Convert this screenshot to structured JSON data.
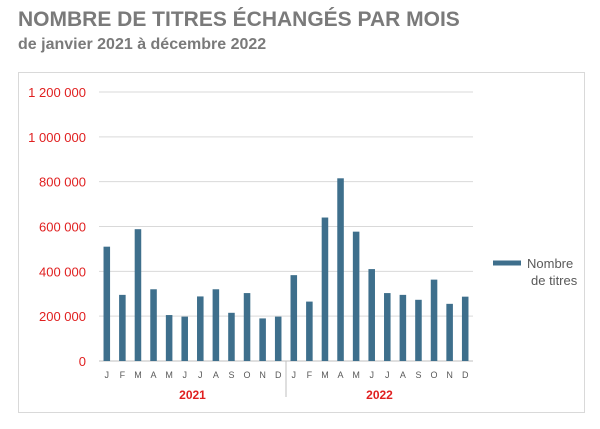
{
  "title": "NOMBRE DE TITRES ÉCHANGÉS PAR MOIS",
  "subtitle": "de janvier 2021 à décembre 2022",
  "chart_data": {
    "type": "bar",
    "title": "",
    "xlabel": "",
    "ylabel": "",
    "ylim": [
      0,
      1200000
    ],
    "yticks": [
      0,
      200000,
      400000,
      600000,
      800000,
      1000000,
      1200000
    ],
    "ytick_labels": [
      "0",
      "200 000",
      "400 000",
      "600 000",
      "800 000",
      "1 000 000",
      "1 200 000"
    ],
    "grid": true,
    "legend_position": "right",
    "categories": [
      "J",
      "F",
      "M",
      "A",
      "M",
      "J",
      "J",
      "A",
      "S",
      "O",
      "N",
      "D",
      "J",
      "F",
      "M",
      "A",
      "M",
      "J",
      "J",
      "A",
      "S",
      "O",
      "N",
      "D"
    ],
    "groups": [
      {
        "label": "2021",
        "count": 12
      },
      {
        "label": "2022",
        "count": 12
      }
    ],
    "series": [
      {
        "name": "Nombre de titres",
        "color": "#3e6f8c",
        "values": [
          510000,
          295000,
          588000,
          320000,
          205000,
          198000,
          288000,
          320000,
          215000,
          303000,
          190000,
          198000,
          383000,
          265000,
          640000,
          815000,
          577000,
          410000,
          303000,
          295000,
          273000,
          363000,
          255000,
          287000
        ]
      }
    ],
    "colors": {
      "tick_label_y": "#e02020",
      "tick_label_x": "#595959",
      "group_label": "#e02020",
      "grid": "#d9d9d9",
      "legend_text": "#595959"
    }
  }
}
